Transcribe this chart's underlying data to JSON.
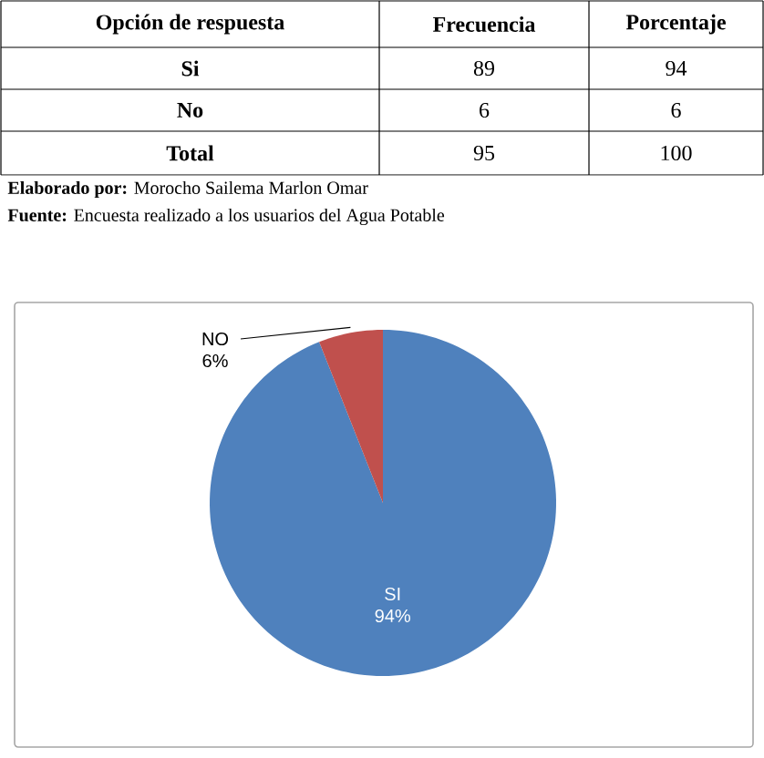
{
  "chart_data": {
    "type": "pie",
    "categories": [
      "SI",
      "NO"
    ],
    "values": [
      94,
      6
    ],
    "value_labels": [
      "94%",
      "6%"
    ],
    "colors": [
      "#4f81bd",
      "#c0504d"
    ],
    "annotations": [
      "Opción de respuesta",
      "Frecuencia",
      "Porcentaje",
      "Si",
      "89",
      "94",
      "No",
      "6",
      "6",
      "Total",
      "95",
      "100",
      "**Elaborado por:** Morocho Sailema Marlon Omar",
      "**Fuente:** Encuesta realizado a los usuarios del Agua Potable"
    ]
  }
}
